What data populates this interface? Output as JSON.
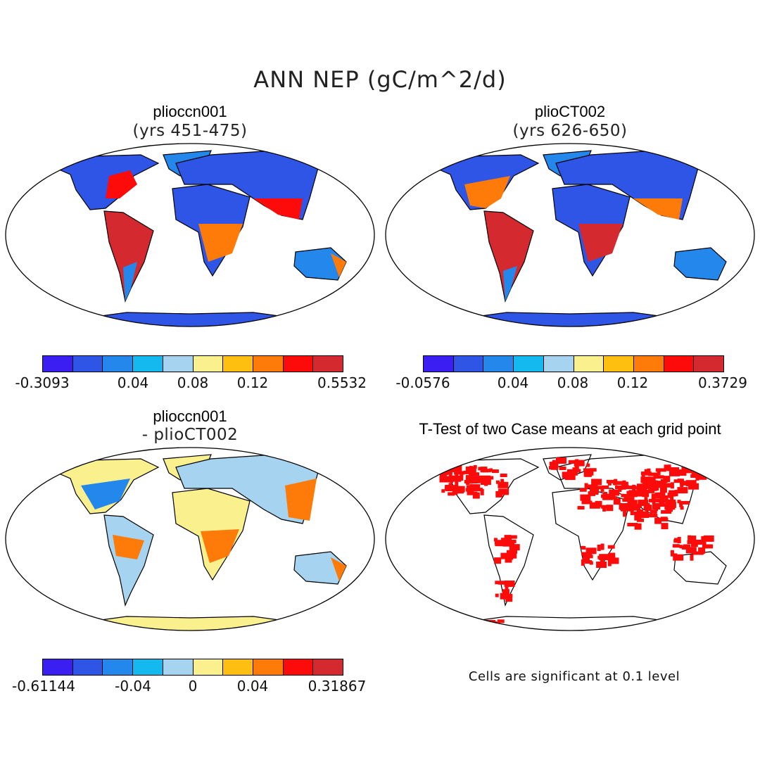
{
  "main_title": "ANN NEP (gC/m^2/d)",
  "palette": [
    "#3b1ef2",
    "#2f55e6",
    "#2387eb",
    "#14b9f0",
    "#a6d3ef",
    "#fbf08e",
    "#ffbf10",
    "#fe7a09",
    "#fd0a0a",
    "#d42a2f"
  ],
  "panels": [
    {
      "title": "plioccn001",
      "subtitle": "(yrs 451-475)",
      "colorbar_labels": [
        "-0.3093",
        "0.04",
        "0.08",
        "0.12",
        "0.5532"
      ]
    },
    {
      "title": "plioCT002",
      "subtitle": "(yrs 626-650)",
      "colorbar_labels": [
        "-0.0576",
        "0.04",
        "0.08",
        "0.12",
        "0.3729"
      ]
    },
    {
      "title": "plioccn001",
      "subtitle": "- plioCT002",
      "colorbar_labels": [
        "-0.61144",
        "-0.04",
        "0",
        "0.04",
        "0.31867"
      ]
    },
    {
      "title": "T-Test of two Case means at each grid point",
      "note": "Cells are significant at 0.1 level"
    }
  ]
}
